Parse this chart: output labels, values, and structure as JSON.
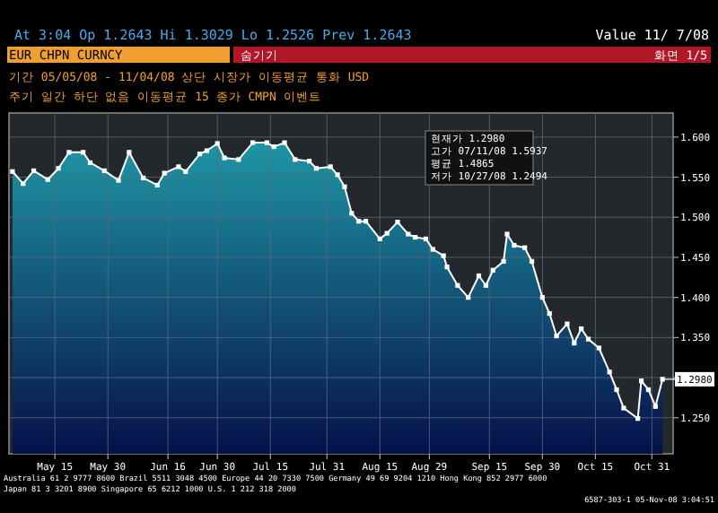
{
  "chart_data": {
    "type": "area",
    "title": "EUR CHPN CURNCY",
    "x": [
      "--05-03",
      "--05-06",
      "--05-09",
      "--05-13",
      "--05-16",
      "--05-19",
      "--05-23",
      "--05-25",
      "--05-29",
      "--06-02",
      "--06-05",
      "--06-09",
      "--06-13",
      "--06-15",
      "--06-19",
      "--06-21",
      "--06-25",
      "--06-27",
      "--06-30",
      "--07-02",
      "--07-06",
      "--07-10",
      "--07-14",
      "--07-16",
      "--07-19",
      "--07-22",
      "--07-26",
      "--07-28",
      "--08-01",
      "--08-03",
      "--08-05",
      "--08-07",
      "--08-09",
      "--08-11",
      "--08-15",
      "--08-17",
      "--08-20",
      "--08-23",
      "--08-25",
      "--08-28",
      "--08-30",
      "--09-02",
      "--09-03",
      "--09-06",
      "--09-09",
      "--09-12",
      "--09-14",
      "--09-16",
      "--09-19",
      "--09-20",
      "--09-22",
      "--09-25",
      "--09-27",
      "--09-30",
      "--10-02",
      "--10-04",
      "--10-07",
      "--10-09",
      "--10-11",
      "--10-13",
      "--10-16",
      "--10-19",
      "--10-21",
      "--10-23",
      "--10-27",
      "--10-28",
      "--10-30",
      "--11-01",
      "--11-03"
    ],
    "series": [
      {
        "color": "#ffffff",
        "values": [
          1.557,
          1.542,
          1.558,
          1.547,
          1.561,
          1.581,
          1.581,
          1.568,
          1.558,
          1.546,
          1.581,
          1.549,
          1.54,
          1.555,
          1.563,
          1.557,
          1.579,
          1.583,
          1.592,
          1.574,
          1.572,
          1.593,
          1.593,
          1.588,
          1.593,
          1.572,
          1.57,
          1.561,
          1.563,
          1.553,
          1.538,
          1.505,
          1.495,
          1.495,
          1.473,
          1.48,
          1.494,
          1.479,
          1.475,
          1.473,
          1.46,
          1.452,
          1.438,
          1.415,
          1.4,
          1.427,
          1.415,
          1.434,
          1.445,
          1.479,
          1.465,
          1.462,
          1.445,
          1.4,
          1.38,
          1.352,
          1.367,
          1.343,
          1.361,
          1.348,
          1.337,
          1.307,
          1.285,
          1.262,
          1.249,
          1.296,
          1.285,
          1.264,
          1.298
        ]
      }
    ],
    "xlim": [
      "--05-02",
      "--11-06"
    ],
    "xticks": [
      {
        "value": "--05-15",
        "label": "May 15"
      },
      {
        "value": "--05-30",
        "label": "May 30"
      },
      {
        "value": "--06-16",
        "label": "Jun 16"
      },
      {
        "value": "--06-30",
        "label": "Jun 30"
      },
      {
        "value": "--07-15",
        "label": "Jul 15"
      },
      {
        "value": "--07-31",
        "label": "Jul 31"
      },
      {
        "value": "--08-15",
        "label": "Aug 15"
      },
      {
        "value": "--08-29",
        "label": "Aug 29"
      },
      {
        "value": "--09-15",
        "label": "Sep 15"
      },
      {
        "value": "--09-30",
        "label": "Sep 30"
      },
      {
        "value": "--10-15",
        "label": "Oct 15"
      },
      {
        "value": "--10-31",
        "label": "Oct 31"
      }
    ],
    "ylim": [
      1.205,
      1.63
    ],
    "yticks": [
      {
        "value": 1.25,
        "label": "1.250"
      },
      {
        "value": 1.3,
        "label": null
      },
      {
        "value": 1.35,
        "label": "1.350"
      },
      {
        "value": 1.4,
        "label": "1.400"
      },
      {
        "value": 1.45,
        "label": "1.450"
      },
      {
        "value": 1.5,
        "label": "1.500"
      },
      {
        "value": 1.55,
        "label": "1.550"
      },
      {
        "value": 1.6,
        "label": "1.600"
      }
    ],
    "grid": true,
    "marker": "square",
    "annotations": [
      "At 3:04 Op 1.2643 Hi 1.3029 Lo 1.2526 Prev 1.2643",
      "Value 11/ 7/08",
      "숨기기",
      "화면 1/5",
      "기간 05/05/08 - 11/04/08  상단 시장가  이동평균  통화 USD",
      "주기 일간  하단 없음  이동평균 15  종가 CMPN  이벤트",
      "현재가 1.2980",
      "고가 07/11/08 1.5937",
      "평균 1.4865",
      "저가 10/27/08 1.2494",
      "Australia 61 2 9777 8600 Brazil 5511 3048 4500 Europe 44 20 7330 7500 Germany 49 69 9204 1210 Hong Kong 852 2977 6000",
      "Japan 81 3 3201 8900   Singapore 65 6212 1000   U.S. 1 212 318 2000",
      "6587-303-1 05-Nov-08 3:04:51",
      {
        "text": "1.2980",
        "x": "--11-03",
        "y": 1.298
      }
    ]
  }
}
